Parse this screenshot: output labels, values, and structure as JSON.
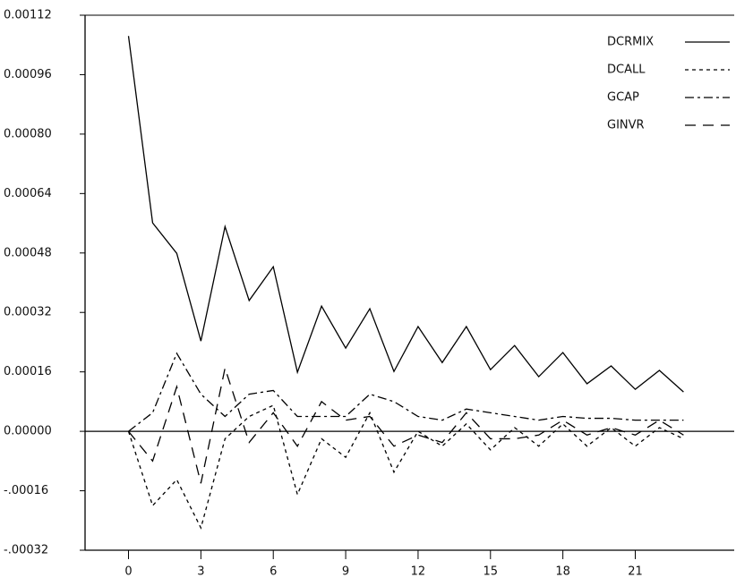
{
  "chart_data": {
    "type": "line",
    "x": [
      0,
      1,
      2,
      3,
      4,
      5,
      6,
      7,
      8,
      9,
      10,
      11,
      12,
      13,
      14,
      15,
      16,
      17,
      18,
      19,
      20,
      21,
      22,
      23
    ],
    "series": [
      {
        "name": "DCRMIX",
        "color": "#000000",
        "dash": "none",
        "values": [
          0.001064,
          0.000561,
          0.000479,
          0.000243,
          0.000551,
          0.000352,
          0.000443,
          0.000159,
          0.000337,
          0.000224,
          0.00033,
          0.000161,
          0.000282,
          0.000185,
          0.000282,
          0.000166,
          0.000231,
          0.000147,
          0.000212,
          0.000128,
          0.000176,
          0.000113,
          0.000164,
          0.000106
        ]
      },
      {
        "name": "DCALL",
        "color": "#000000",
        "dash": "4,4",
        "values": [
          0,
          -0.0002,
          -0.00013,
          -0.00026,
          -2e-05,
          4e-05,
          7e-05,
          -0.00017,
          -2e-05,
          -7e-05,
          5e-05,
          -0.00011,
          0,
          -4e-05,
          2e-05,
          -5e-05,
          1e-05,
          -4e-05,
          2e-05,
          -4e-05,
          1e-05,
          -4e-05,
          1e-05,
          -2e-05
        ]
      },
      {
        "name": "GCAP",
        "color": "#000000",
        "dash": "10,4,3,4",
        "values": [
          0,
          5e-05,
          0.00021,
          0.0001,
          4e-05,
          0.0001,
          0.00011,
          4e-05,
          4e-05,
          4e-05,
          0.0001,
          8e-05,
          4e-05,
          3e-05,
          6e-05,
          5e-05,
          4e-05,
          3e-05,
          4e-05,
          3.5e-05,
          3.5e-05,
          3e-05,
          3e-05,
          3e-05
        ]
      },
      {
        "name": "GINVR",
        "color": "#000000",
        "dash": "12,8",
        "values": [
          0,
          -8e-05,
          0.00012,
          -0.00014,
          0.00017,
          -3e-05,
          5e-05,
          -4e-05,
          8e-05,
          3e-05,
          4e-05,
          -4e-05,
          -1e-05,
          -3e-05,
          5e-05,
          -2e-05,
          -2e-05,
          -1e-05,
          3e-05,
          -1e-05,
          1e-05,
          -1e-05,
          3e-05,
          -1e-05
        ]
      }
    ],
    "xlim": [
      -1.8,
      25.1
    ],
    "xticks": [
      0,
      3,
      6,
      9,
      12,
      15,
      18,
      21
    ],
    "ylim": [
      -0.00032,
      0.00112
    ],
    "yticks": [
      {
        "value": -0.00032,
        "label": "-.00032"
      },
      {
        "value": -0.00016,
        "label": "-.00016"
      },
      {
        "value": 0,
        "label": "0.00000"
      },
      {
        "value": 0.00016,
        "label": "0.00016"
      },
      {
        "value": 0.00032,
        "label": "0.00032"
      },
      {
        "value": 0.00048,
        "label": "0.00048"
      },
      {
        "value": 0.00064,
        "label": "0.00064"
      },
      {
        "value": 0.0008,
        "label": "0.00080"
      },
      {
        "value": 0.00096,
        "label": "0.00096"
      },
      {
        "value": 0.00112,
        "label": "0.00112"
      }
    ],
    "legend": "top-right"
  }
}
